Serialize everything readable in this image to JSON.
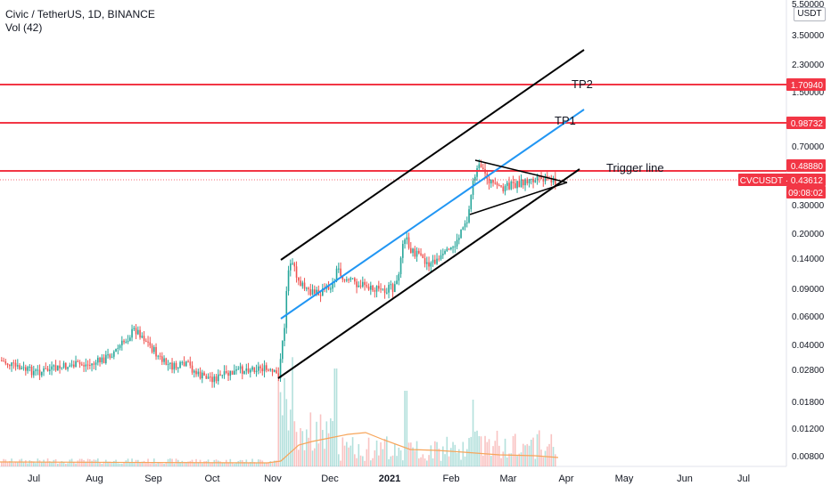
{
  "header": {
    "title": "Civic / TetherUS, 1D, BINANCE",
    "volume_label": "Vol (42)"
  },
  "axis": {
    "unit": "USDT",
    "price_ticks": [
      "5.50000",
      "3.50000",
      "2.30000",
      "1.50000",
      "0.70000",
      "0.30000",
      "0.20000",
      "0.14000",
      "0.09000",
      "0.06000",
      "0.04000",
      "0.02800",
      "0.01800",
      "0.01200",
      "0.00800"
    ],
    "time_ticks": [
      "Jul",
      "Aug",
      "Sep",
      "Oct",
      "Nov",
      "Dec",
      "2021",
      "Feb",
      "Mar",
      "Apr",
      "May",
      "Jun",
      "Jul"
    ]
  },
  "price_tags": [
    {
      "name": "tp2-price-tag",
      "text": "1.70940",
      "bg": "#f23645"
    },
    {
      "name": "tp1-price-tag",
      "text": "0.98732",
      "bg": "#f23645"
    },
    {
      "name": "trigger-price-tag",
      "text": "0.48880",
      "bg": "#f23645"
    },
    {
      "name": "symbol-price-tag",
      "text": "CVCUSDT  ·  0.43612",
      "bg": "#f23645"
    },
    {
      "name": "countdown-tag",
      "text": "09:08:02",
      "bg": "#f23645"
    }
  ],
  "annotations": {
    "tp2": "TP2",
    "tp1": "TP1",
    "trigger": "Trigger line"
  },
  "colors": {
    "up": "#26a69a",
    "down": "#ef5350",
    "horizontal_level": "#f23645",
    "channel": "#000000",
    "midline": "#2196f3",
    "volume_ma": "#f7a55a"
  },
  "chart_data": {
    "type": "candlestick",
    "scale": "log",
    "y_unit": "USDT",
    "horizontal_levels": [
      1.7094,
      0.98732,
      0.4888
    ],
    "last_price": 0.43612,
    "approx_monthly_close": [
      {
        "month": "Jul",
        "close": 0.03
      },
      {
        "month": "Aug",
        "close": 0.032
      },
      {
        "month": "Sep",
        "close": 0.044
      },
      {
        "month": "Oct",
        "close": 0.029
      },
      {
        "month": "Nov",
        "close": 0.11
      },
      {
        "month": "Dec",
        "close": 0.095
      },
      {
        "month": "2021",
        "close": 0.15
      },
      {
        "month": "Feb",
        "close": 0.25
      },
      {
        "month": "Mar",
        "close": 0.44
      }
    ]
  }
}
